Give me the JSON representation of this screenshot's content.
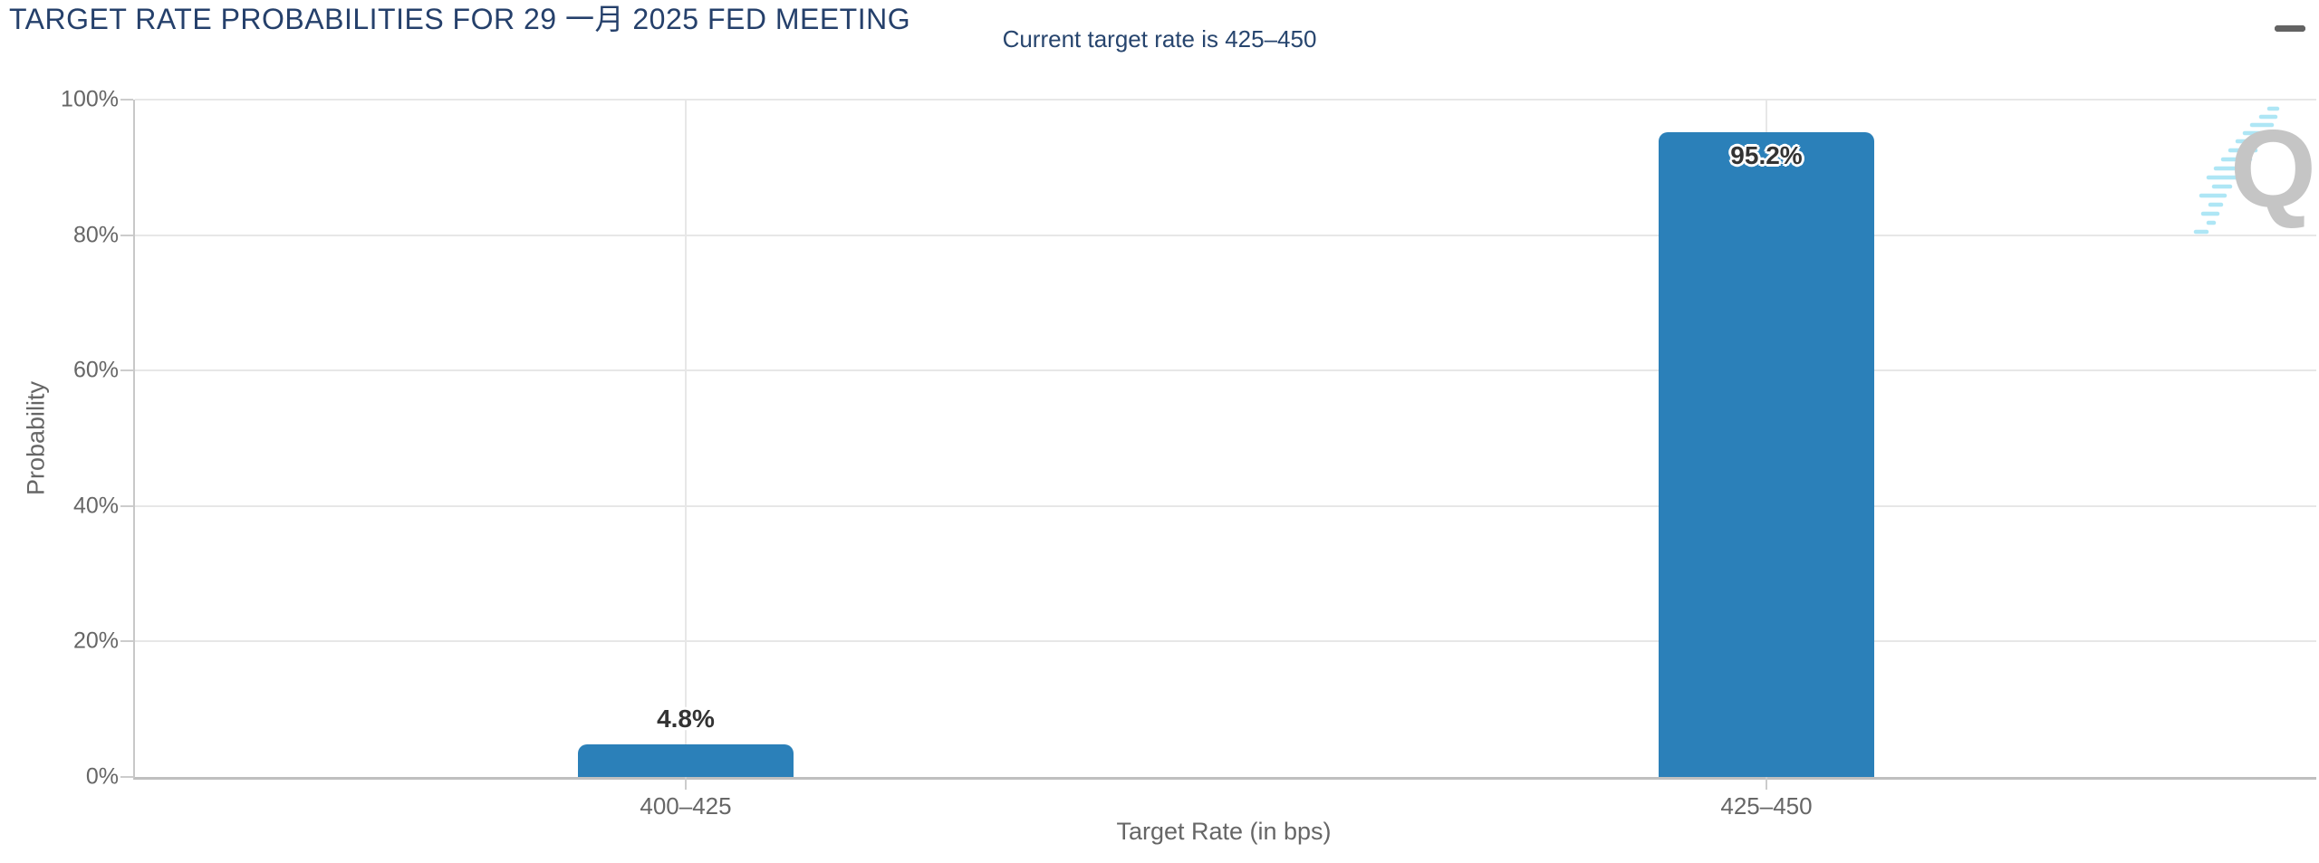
{
  "chart_data": {
    "type": "bar",
    "title": "TARGET RATE PROBABILITIES FOR 29 一月 2025 FED MEETING",
    "subtitle": "Current target rate is 425–450",
    "categories": [
      "400–425",
      "425–450"
    ],
    "values": [
      4.8,
      95.2
    ],
    "labels": [
      "4.8%",
      "95.2%"
    ],
    "xlabel": "Target Rate (in bps)",
    "ylabel": "Probability",
    "ylim": [
      0,
      100
    ],
    "yticks": [
      "0%",
      "20%",
      "40%",
      "60%",
      "80%",
      "100%"
    ],
    "grid": true,
    "legend": "none",
    "bar_color": "#2b80b9"
  },
  "colors": {
    "title_navy": "#25406b",
    "subtitle_navy": "#27456e",
    "bar_blue": "#2b80b9",
    "axis_text_gray": "#666666",
    "gridline_gray": "#e7e7e7",
    "watermark_gray": "#c5c5c5",
    "watermark_blue": "#aee6f5"
  },
  "menu": {
    "icon": "hamburger-menu-icon"
  },
  "watermark": {
    "letter": "Q"
  }
}
